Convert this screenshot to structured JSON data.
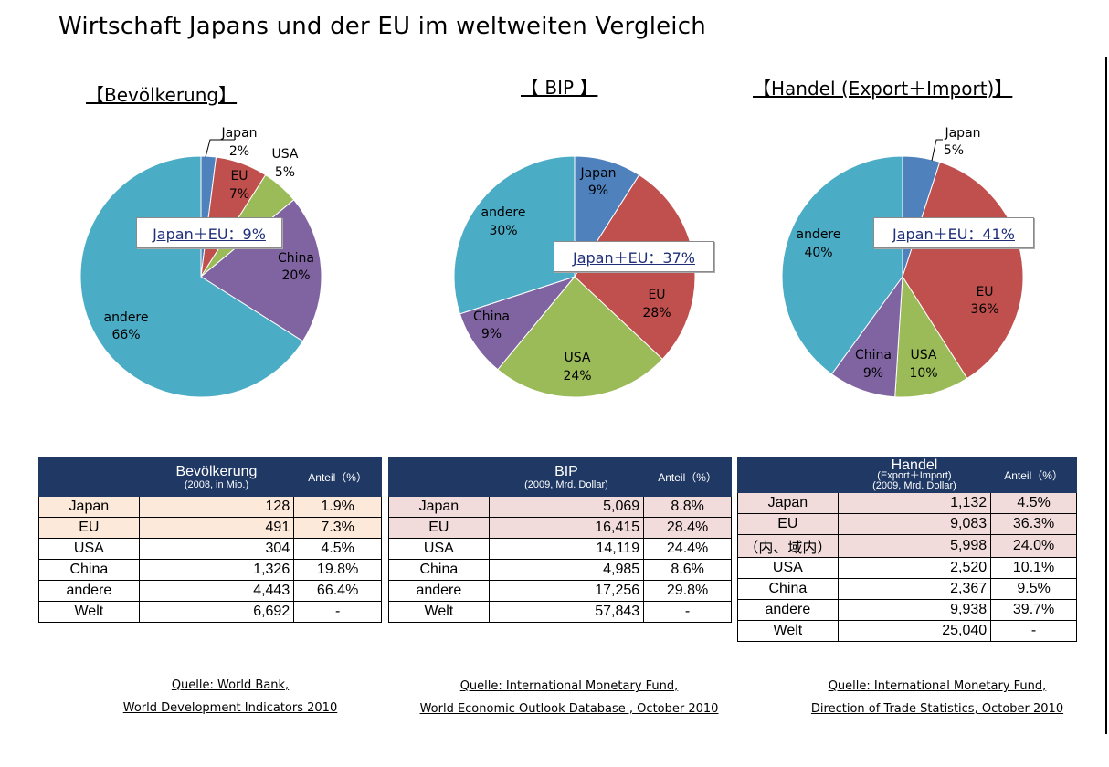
{
  "title": "Wirtschaft Japans und der EU im weltweiten Vergleich",
  "chart_data": [
    {
      "type": "pie",
      "title": "【Bevölkerung】",
      "categories": [
        "Japan",
        "EU",
        "USA",
        "China",
        "andere"
      ],
      "values": [
        2,
        7,
        5,
        20,
        66
      ],
      "labels": [
        "2%",
        "7%",
        "5%",
        "20%",
        "66%"
      ],
      "colors": [
        "#4f81bd",
        "#c0504d",
        "#9bbb59",
        "#8064a2",
        "#4bacc6"
      ],
      "callout": "Japan＋EU：9%"
    },
    {
      "type": "pie",
      "title": "【 BIP 】",
      "categories": [
        "Japan",
        "EU",
        "USA",
        "China",
        "andere"
      ],
      "values": [
        9,
        28,
        24,
        9,
        30
      ],
      "labels": [
        "9%",
        "28%",
        "24%",
        "9%",
        "30%"
      ],
      "colors": [
        "#4f81bd",
        "#c0504d",
        "#9bbb59",
        "#8064a2",
        "#4bacc6"
      ],
      "callout": "Japan＋EU：37%"
    },
    {
      "type": "pie",
      "title": "【Handel (Export＋Import)】",
      "categories": [
        "Japan",
        "EU",
        "USA",
        "China",
        "andere"
      ],
      "values": [
        5,
        36,
        10,
        9,
        40
      ],
      "labels": [
        "5%",
        "36%",
        "10%",
        "9%",
        "40%"
      ],
      "colors": [
        "#4f81bd",
        "#c0504d",
        "#9bbb59",
        "#8064a2",
        "#4bacc6"
      ],
      "callout": "Japan＋EU：41%"
    },
    {
      "type": "table",
      "title": "Bevölkerung",
      "subtitle": "(2008, in Mio.)",
      "value_header": "Anteil（%）",
      "rows": [
        {
          "name": "Japan",
          "value": "128",
          "share": "1.9%"
        },
        {
          "name": "EU",
          "value": "491",
          "share": "7.3%"
        },
        {
          "name": "USA",
          "value": "304",
          "share": "4.5%"
        },
        {
          "name": "China",
          "value": "1,326",
          "share": "19.8%"
        },
        {
          "name": "andere",
          "value": "4,443",
          "share": "66.4%"
        },
        {
          "name": "Welt",
          "value": "6,692",
          "share": "-"
        }
      ]
    },
    {
      "type": "table",
      "title": "BIP",
      "subtitle": "(2009, Mrd. Dollar)",
      "value_header": "Anteil（%）",
      "rows": [
        {
          "name": "Japan",
          "value": "5,069",
          "share": "8.8%"
        },
        {
          "name": "EU",
          "value": "16,415",
          "share": "28.4%"
        },
        {
          "name": "USA",
          "value": "14,119",
          "share": "24.4%"
        },
        {
          "name": "China",
          "value": "4,985",
          "share": "8.6%"
        },
        {
          "name": "andere",
          "value": "17,256",
          "share": "29.8%"
        },
        {
          "name": "Welt",
          "value": "57,843",
          "share": "-"
        }
      ]
    },
    {
      "type": "table",
      "title": "Handel",
      "subtitle": "(Export＋Import)",
      "subtitle2": "(2009, Mrd. Dollar)",
      "value_header": "Anteil（%）",
      "rows": [
        {
          "name": "Japan",
          "value": "1,132",
          "share": "4.5%"
        },
        {
          "name": "EU",
          "value": "9,083",
          "share": "36.3%"
        },
        {
          "name": "（内、域内）",
          "value": "5,998",
          "share": "24.0%"
        },
        {
          "name": "USA",
          "value": "2,520",
          "share": "10.1%"
        },
        {
          "name": "China",
          "value": "2,367",
          "share": "9.5%"
        },
        {
          "name": "andere",
          "value": "9,938",
          "share": "39.7%"
        },
        {
          "name": "Welt",
          "value": "25,040",
          "share": "-"
        }
      ]
    }
  ],
  "sources": [
    {
      "line1": "Quelle: World Bank,",
      "line2": "World Development Indicators  2010"
    },
    {
      "line1": "Quelle: International Monetary Fund,",
      "line2": " World Economic Outlook Database  , October  2010"
    },
    {
      "line1": "Quelle: International Monetary Fund,",
      "line2": " Direction of Trade Statistics, October 2010"
    }
  ]
}
